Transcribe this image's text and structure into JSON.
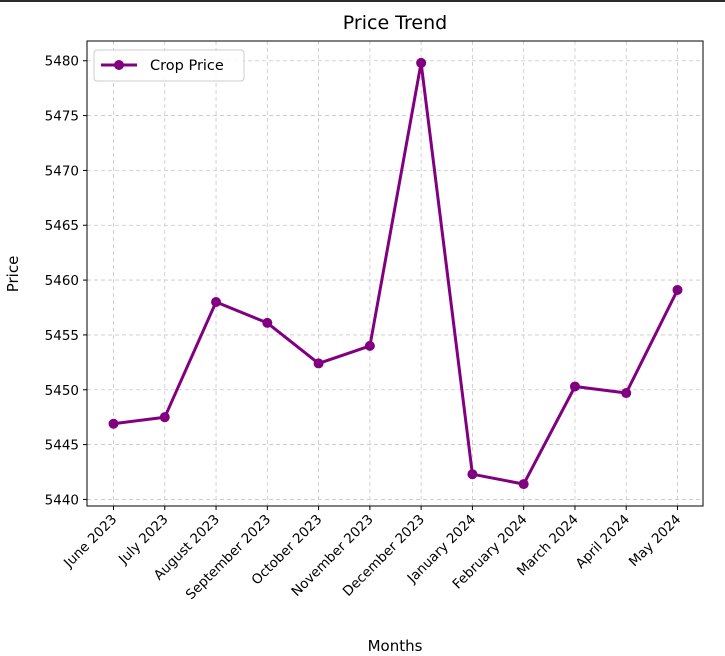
{
  "chart_data": {
    "type": "line",
    "title": "Price Trend",
    "xlabel": "Months",
    "ylabel": "Price",
    "categories": [
      "June 2023",
      "July 2023",
      "August 2023",
      "September 2023",
      "October 2023",
      "November 2023",
      "December 2023",
      "January 2024",
      "February 2024",
      "March 2024",
      "April 2024",
      "May 2024"
    ],
    "series": [
      {
        "name": "Crop Price",
        "color": "#800080",
        "marker": "circle",
        "values": [
          5446.9,
          5447.5,
          5458.0,
          5456.1,
          5452.4,
          5454.0,
          5479.8,
          5442.3,
          5441.4,
          5450.3,
          5449.7,
          5459.1
        ]
      }
    ],
    "yticks": [
      5440,
      5445,
      5450,
      5455,
      5460,
      5465,
      5470,
      5475,
      5480
    ],
    "ylim": [
      5439.4,
      5481.8
    ],
    "grid": true,
    "grid_style": "dashed",
    "legend_position": "top-left",
    "x_tick_rotation_deg": 45
  }
}
